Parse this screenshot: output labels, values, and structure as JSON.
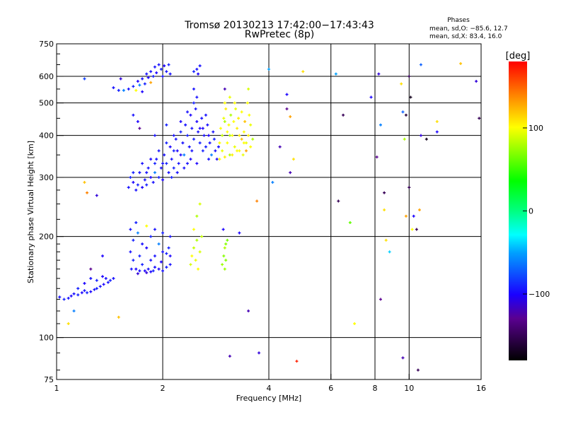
{
  "chart_data": {
    "type": "scatter",
    "title": "Tromsø 20130213 17:42:00−17:43:43",
    "subtitle": "RwPretec (8p)",
    "info": {
      "heading": "Phases",
      "line_o": "mean, sd,O: −85.6, 12.7",
      "line_x": "mean, sd,X:  83.4, 16.0"
    },
    "xlabel": "Frequency [MHz]",
    "ylabel": "Stationary phase Virtual Height [km]",
    "xscale": "log",
    "yscale": "log",
    "xlim": [
      1,
      16
    ],
    "ylim": [
      75,
      750
    ],
    "xticks": [
      1,
      2,
      4,
      6,
      8,
      10,
      16
    ],
    "xtick_labels": [
      "1",
      "2",
      "4",
      "6",
      "8",
      "10",
      "16"
    ],
    "yticks": [
      75,
      100,
      200,
      300,
      400,
      500,
      600,
      750
    ],
    "ytick_labels": [
      "75",
      "100",
      "200",
      "300",
      "400",
      "500",
      "600",
      "750"
    ],
    "xgrid": [
      2,
      4,
      6,
      8,
      10
    ],
    "ygrid": [
      100,
      200,
      300,
      400,
      500,
      600
    ],
    "colorbar": {
      "label": "[deg]",
      "range": [
        -180,
        180
      ],
      "ticks": [
        100,
        0,
        -100
      ],
      "tick_labels": [
        "100",
        "0",
        "−100"
      ]
    },
    "point_format": [
      "frequency_MHz",
      "height_km",
      "phase_deg"
    ],
    "points": [
      [
        1.02,
        132,
        -95
      ],
      [
        1.05,
        130,
        -90
      ],
      [
        1.08,
        131,
        -95
      ],
      [
        1.1,
        133,
        -100
      ],
      [
        1.12,
        135,
        -95
      ],
      [
        1.15,
        134,
        -90
      ],
      [
        1.18,
        136,
        -100
      ],
      [
        1.2,
        138,
        -95
      ],
      [
        1.22,
        136,
        -90
      ],
      [
        1.25,
        137,
        -100
      ],
      [
        1.28,
        139,
        -95
      ],
      [
        1.3,
        140,
        -90
      ],
      [
        1.33,
        142,
        -95
      ],
      [
        1.36,
        144,
        -100
      ],
      [
        1.4,
        146,
        -95
      ],
      [
        1.42,
        148,
        -90
      ],
      [
        1.45,
        150,
        -95
      ],
      [
        1.2,
        145,
        -100
      ],
      [
        1.25,
        150,
        -95
      ],
      [
        1.3,
        148,
        -90
      ],
      [
        1.35,
        152,
        -100
      ],
      [
        1.38,
        150,
        -95
      ],
      [
        1.15,
        140,
        -90
      ],
      [
        1.62,
        180,
        -95
      ],
      [
        1.65,
        170,
        -90
      ],
      [
        1.68,
        160,
        -100
      ],
      [
        1.7,
        155,
        -110
      ],
      [
        1.72,
        158,
        -95
      ],
      [
        1.75,
        165,
        -90
      ],
      [
        1.78,
        158,
        -100
      ],
      [
        1.8,
        156,
        -110
      ],
      [
        1.82,
        160,
        -95
      ],
      [
        1.85,
        157,
        -100
      ],
      [
        1.88,
        158,
        -90
      ],
      [
        1.9,
        162,
        -95
      ],
      [
        1.95,
        160,
        -100
      ],
      [
        2.0,
        158,
        -95
      ],
      [
        2.05,
        162,
        -90
      ],
      [
        2.1,
        165,
        -95
      ],
      [
        1.65,
        195,
        -90
      ],
      [
        1.7,
        205,
        -60
      ],
      [
        1.75,
        190,
        -95
      ],
      [
        1.8,
        185,
        -100
      ],
      [
        1.85,
        200,
        -90
      ],
      [
        1.9,
        175,
        -95
      ],
      [
        1.95,
        190,
        -60
      ],
      [
        2.0,
        180,
        -95
      ],
      [
        2.05,
        178,
        -90
      ],
      [
        2.1,
        175,
        -100
      ],
      [
        1.62,
        210,
        -95
      ],
      [
        1.68,
        220,
        -90
      ],
      [
        1.8,
        215,
        100
      ],
      [
        1.9,
        210,
        -95
      ],
      [
        2.0,
        205,
        -90
      ],
      [
        2.1,
        200,
        -95
      ],
      [
        1.72,
        175,
        -90
      ],
      [
        1.85,
        170,
        -95
      ],
      [
        1.98,
        168,
        -100
      ],
      [
        2.08,
        185,
        -90
      ],
      [
        1.63,
        160,
        -95
      ],
      [
        1.6,
        280,
        -95
      ],
      [
        1.62,
        300,
        -90
      ],
      [
        1.65,
        290,
        -100
      ],
      [
        1.68,
        275,
        -95
      ],
      [
        1.7,
        285,
        -90
      ],
      [
        1.72,
        310,
        -95
      ],
      [
        1.75,
        280,
        -100
      ],
      [
        1.78,
        295,
        -95
      ],
      [
        1.8,
        285,
        -90
      ],
      [
        1.82,
        320,
        -95
      ],
      [
        1.85,
        300,
        -100
      ],
      [
        1.88,
        290,
        -95
      ],
      [
        1.9,
        310,
        -60
      ],
      [
        1.92,
        340,
        -95
      ],
      [
        1.95,
        300,
        -90
      ],
      [
        1.98,
        320,
        -95
      ],
      [
        2.0,
        295,
        -100
      ],
      [
        2.02,
        350,
        -95
      ],
      [
        2.05,
        330,
        -90
      ],
      [
        2.08,
        310,
        -95
      ],
      [
        2.1,
        370,
        -100
      ],
      [
        2.12,
        340,
        -95
      ],
      [
        2.15,
        320,
        -90
      ],
      [
        2.18,
        390,
        -95
      ],
      [
        2.2,
        360,
        -100
      ],
      [
        2.22,
        330,
        -95
      ],
      [
        2.25,
        410,
        -90
      ],
      [
        2.28,
        380,
        -95
      ],
      [
        2.3,
        350,
        -60
      ],
      [
        2.32,
        430,
        -95
      ],
      [
        2.35,
        400,
        -90
      ],
      [
        2.38,
        370,
        -95
      ],
      [
        2.4,
        460,
        -100
      ],
      [
        2.42,
        420,
        -95
      ],
      [
        2.45,
        390,
        -90
      ],
      [
        2.48,
        480,
        -95
      ],
      [
        2.5,
        440,
        -100
      ],
      [
        2.52,
        410,
        -95
      ],
      [
        2.55,
        380,
        -90
      ],
      [
        2.58,
        450,
        -95
      ],
      [
        2.6,
        420,
        -100
      ],
      [
        2.62,
        400,
        -95
      ],
      [
        2.65,
        370,
        -90
      ],
      [
        2.68,
        430,
        -95
      ],
      [
        2.7,
        400,
        -100
      ],
      [
        2.72,
        380,
        -95
      ],
      [
        2.75,
        350,
        -60
      ],
      [
        2.78,
        410,
        -95
      ],
      [
        2.8,
        390,
        -90
      ],
      [
        2.82,
        360,
        -95
      ],
      [
        2.85,
        340,
        -100
      ],
      [
        2.88,
        370,
        -95
      ],
      [
        1.65,
        310,
        -90
      ],
      [
        1.75,
        330,
        -95
      ],
      [
        1.85,
        340,
        -100
      ],
      [
        1.95,
        360,
        -95
      ],
      [
        2.05,
        380,
        -90
      ],
      [
        2.15,
        400,
        -95
      ],
      [
        2.25,
        440,
        -100
      ],
      [
        2.35,
        470,
        -95
      ],
      [
        2.45,
        500,
        -90
      ],
      [
        2.5,
        520,
        -95
      ],
      [
        2.4,
        340,
        -100
      ],
      [
        2.3,
        320,
        -95
      ],
      [
        2.6,
        360,
        -90
      ],
      [
        2.7,
        340,
        -95
      ],
      [
        2.5,
        330,
        -100
      ],
      [
        2.2,
        310,
        -95
      ],
      [
        2.12,
        300,
        -90
      ],
      [
        2.0,
        330,
        -95
      ],
      [
        1.7,
        440,
        -100
      ],
      [
        1.65,
        460,
        -95
      ],
      [
        1.72,
        420,
        -130
      ],
      [
        1.9,
        400,
        -95
      ],
      [
        2.05,
        430,
        -90
      ],
      [
        2.45,
        550,
        -95
      ],
      [
        2.55,
        420,
        -100
      ],
      [
        2.65,
        460,
        -95
      ],
      [
        1.9,
        330,
        -90
      ],
      [
        1.8,
        310,
        -95
      ],
      [
        2.25,
        350,
        -100
      ],
      [
        2.35,
        330,
        -95
      ],
      [
        2.15,
        360,
        -90
      ],
      [
        2.42,
        360,
        -95
      ],
      [
        1.6,
        550,
        -95
      ],
      [
        1.65,
        560,
        -90
      ],
      [
        1.7,
        580,
        -100
      ],
      [
        1.72,
        565,
        -60
      ],
      [
        1.75,
        590,
        -95
      ],
      [
        1.78,
        570,
        -90
      ],
      [
        1.8,
        610,
        -95
      ],
      [
        1.82,
        595,
        -100
      ],
      [
        1.85,
        620,
        -95
      ],
      [
        1.88,
        600,
        -90
      ],
      [
        1.9,
        640,
        -95
      ],
      [
        1.92,
        615,
        -100
      ],
      [
        1.95,
        650,
        -95
      ],
      [
        1.98,
        630,
        -90
      ],
      [
        2.0,
        600,
        -95
      ],
      [
        2.02,
        645,
        -100
      ],
      [
        2.05,
        620,
        -95
      ],
      [
        2.08,
        650,
        -90
      ],
      [
        2.1,
        610,
        -95
      ],
      [
        1.75,
        540,
        -100
      ],
      [
        1.68,
        545,
        100
      ],
      [
        1.85,
        575,
        130
      ],
      [
        2.5,
        630,
        -95
      ],
      [
        2.52,
        610,
        -100
      ],
      [
        2.55,
        645,
        -95
      ],
      [
        2.45,
        620,
        -90
      ],
      [
        1.45,
        555,
        -95
      ],
      [
        1.5,
        545,
        -90
      ],
      [
        2.9,
        340,
        100
      ],
      [
        2.95,
        360,
        95
      ],
      [
        3.0,
        345,
        105
      ],
      [
        3.05,
        380,
        100
      ],
      [
        3.1,
        350,
        80
      ],
      [
        3.15,
        400,
        100
      ],
      [
        3.2,
        370,
        95
      ],
      [
        3.25,
        420,
        105
      ],
      [
        3.3,
        360,
        100
      ],
      [
        3.35,
        390,
        120
      ],
      [
        3.4,
        410,
        100
      ],
      [
        3.45,
        380,
        95
      ],
      [
        3.5,
        400,
        105
      ],
      [
        3.55,
        370,
        100
      ],
      [
        3.6,
        390,
        80
      ],
      [
        2.92,
        420,
        100
      ],
      [
        2.98,
        450,
        95
      ],
      [
        3.02,
        480,
        105
      ],
      [
        3.08,
        430,
        100
      ],
      [
        3.12,
        460,
        80
      ],
      [
        3.18,
        440,
        100
      ],
      [
        3.22,
        480,
        95
      ],
      [
        3.28,
        450,
        105
      ],
      [
        3.35,
        470,
        100
      ],
      [
        3.42,
        440,
        120
      ],
      [
        3.48,
        500,
        100
      ],
      [
        3.5,
        550,
        90
      ],
      [
        3.52,
        460,
        100
      ],
      [
        2.95,
        400,
        85
      ],
      [
        3.05,
        410,
        100
      ],
      [
        3.15,
        350,
        105
      ],
      [
        3.25,
        360,
        100
      ],
      [
        3.38,
        350,
        95
      ],
      [
        3.45,
        360,
        130
      ],
      [
        2.9,
        380,
        100
      ],
      [
        3.0,
        440,
        80
      ],
      [
        3.1,
        520,
        95
      ],
      [
        3.2,
        500,
        100
      ],
      [
        3.3,
        400,
        105
      ],
      [
        3.4,
        380,
        100
      ],
      [
        3.55,
        430,
        95
      ],
      [
        3.0,
        500,
        100
      ],
      [
        3.1,
        400,
        80
      ],
      [
        2.4,
        165,
        90
      ],
      [
        2.42,
        175,
        100
      ],
      [
        2.45,
        185,
        85
      ],
      [
        2.48,
        170,
        95
      ],
      [
        2.5,
        195,
        80
      ],
      [
        2.52,
        160,
        100
      ],
      [
        2.55,
        180,
        90
      ],
      [
        2.58,
        200,
        85
      ],
      [
        2.5,
        230,
        80
      ],
      [
        2.55,
        250,
        90
      ],
      [
        2.45,
        210,
        100
      ],
      [
        2.95,
        165,
        75
      ],
      [
        2.98,
        175,
        70
      ],
      [
        3.0,
        185,
        80
      ],
      [
        3.02,
        170,
        70
      ],
      [
        3.05,
        195,
        65
      ],
      [
        3.0,
        160,
        75
      ],
      [
        2.97,
        210,
        -100
      ],
      [
        3.02,
        190,
        70
      ],
      [
        1.08,
        110,
        110
      ],
      [
        1.12,
        120,
        -60
      ],
      [
        1.2,
        290,
        120
      ],
      [
        1.22,
        270,
        140
      ],
      [
        1.3,
        265,
        -110
      ],
      [
        1.25,
        160,
        -130
      ],
      [
        1.5,
        115,
        120
      ],
      [
        1.35,
        175,
        -100
      ],
      [
        1.2,
        590,
        -80
      ],
      [
        1.52,
        590,
        -110
      ],
      [
        1.55,
        545,
        -60
      ],
      [
        3.0,
        550,
        -120
      ],
      [
        3.7,
        255,
        140
      ],
      [
        3.5,
        120,
        -120
      ],
      [
        3.3,
        205,
        -100
      ],
      [
        3.75,
        90,
        -110
      ],
      [
        3.1,
        88,
        -120
      ],
      [
        4.0,
        630,
        -50
      ],
      [
        4.1,
        290,
        -60
      ],
      [
        4.3,
        370,
        -120
      ],
      [
        4.5,
        480,
        -130
      ],
      [
        4.6,
        310,
        -120
      ],
      [
        4.5,
        530,
        -100
      ],
      [
        4.8,
        85,
        170
      ],
      [
        5.0,
        620,
        110
      ],
      [
        6.2,
        610,
        -50
      ],
      [
        6.3,
        255,
        -150
      ],
      [
        6.5,
        460,
        -150
      ],
      [
        6.8,
        220,
        60
      ],
      [
        7.0,
        110,
        100
      ],
      [
        7.8,
        520,
        -100
      ],
      [
        8.2,
        610,
        -110
      ],
      [
        8.3,
        430,
        -60
      ],
      [
        8.5,
        270,
        -150
      ],
      [
        8.5,
        240,
        110
      ],
      [
        8.6,
        195,
        110
      ],
      [
        8.8,
        180,
        -40
      ],
      [
        8.3,
        130,
        -130
      ],
      [
        9.5,
        570,
        110
      ],
      [
        9.6,
        470,
        -70
      ],
      [
        9.7,
        390,
        80
      ],
      [
        9.8,
        230,
        130
      ],
      [
        9.6,
        87,
        -120
      ],
      [
        10.0,
        600,
        -150
      ],
      [
        10.1,
        520,
        -170
      ],
      [
        10.0,
        280,
        -150
      ],
      [
        10.2,
        210,
        100
      ],
      [
        10.5,
        210,
        -150
      ],
      [
        10.7,
        240,
        130
      ],
      [
        10.8,
        650,
        -70
      ],
      [
        10.8,
        400,
        -110
      ],
      [
        10.6,
        80,
        -150
      ],
      [
        11.2,
        390,
        -170
      ],
      [
        12,
        410,
        -100
      ],
      [
        12,
        440,
        110
      ],
      [
        14,
        655,
        120
      ],
      [
        15.5,
        580,
        -110
      ],
      [
        15.8,
        450,
        -150
      ],
      [
        8.1,
        345,
        -130
      ],
      [
        9.8,
        460,
        -160
      ],
      [
        10.3,
        230,
        -100
      ],
      [
        4.6,
        455,
        130
      ],
      [
        4.7,
        340,
        110
      ]
    ]
  }
}
